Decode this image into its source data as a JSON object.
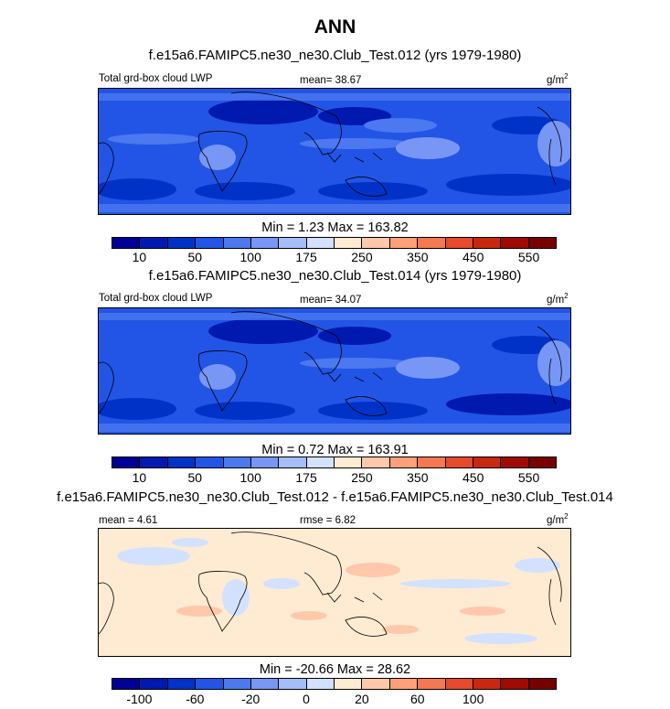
{
  "figure": {
    "title": "ANN"
  },
  "chart_data": [
    {
      "type": "heatmap",
      "title": "f.e15a6.FAMIPC5.ne30_ne30.Club_Test.012 (yrs 1979-1980)",
      "variable": "Total grd-box cloud LWP",
      "mean_label": "mean=  38.67",
      "units_base": "g/m",
      "units_exp": "2",
      "minmax": "Min =   1.23  Max = 163.82",
      "min": 1.23,
      "max": 163.82,
      "mean": 38.67,
      "colorbar": {
        "levels": [
          10,
          25,
          50,
          75,
          100,
          150,
          175,
          200,
          250,
          300,
          350,
          400,
          450,
          500,
          550
        ],
        "tick_labels": [
          "10",
          "50",
          "100",
          "175",
          "250",
          "350",
          "450",
          "550"
        ],
        "colors": [
          "#000096",
          "#0019AF",
          "#0032C8",
          "#2255E6",
          "#4C78F0",
          "#7896F5",
          "#A5BEFA",
          "#D2E1FF",
          "#FFEBD2",
          "#FFC8AA",
          "#FFA078",
          "#F57850",
          "#E64B2D",
          "#C8280F",
          "#A00A00",
          "#780000"
        ]
      }
    },
    {
      "type": "heatmap",
      "title": "f.e15a6.FAMIPC5.ne30_ne30.Club_Test.014 (yrs 1979-1980)",
      "variable": "Total grd-box cloud LWP",
      "mean_label": "mean=  34.07",
      "units_base": "g/m",
      "units_exp": "2",
      "minmax": "Min =   0.72  Max = 163.91",
      "min": 0.72,
      "max": 163.91,
      "mean": 34.07,
      "colorbar": {
        "levels": [
          10,
          25,
          50,
          75,
          100,
          150,
          175,
          200,
          250,
          300,
          350,
          400,
          450,
          500,
          550
        ],
        "tick_labels": [
          "10",
          "50",
          "100",
          "175",
          "250",
          "350",
          "450",
          "550"
        ],
        "colors": [
          "#000096",
          "#0019AF",
          "#0032C8",
          "#2255E6",
          "#4C78F0",
          "#7896F5",
          "#A5BEFA",
          "#D2E1FF",
          "#FFEBD2",
          "#FFC8AA",
          "#FFA078",
          "#F57850",
          "#E64B2D",
          "#C8280F",
          "#A00A00",
          "#780000"
        ]
      }
    },
    {
      "type": "heatmap",
      "title": "f.e15a6.FAMIPC5.ne30_ne30.Club_Test.012 - f.e15a6.FAMIPC5.ne30_ne30.Club_Test.014",
      "left_label": "mean =   4.61",
      "center_label": "rmse =   6.82",
      "units_base": "g/m",
      "units_exp": "2",
      "minmax": "Min = -20.66  Max =  28.62",
      "min": -20.66,
      "max": 28.62,
      "mean": 4.61,
      "rmse": 6.82,
      "colorbar": {
        "tick_labels": [
          "-100",
          "-60",
          "-20",
          "0",
          "20",
          "60",
          "100"
        ],
        "colors": [
          "#000096",
          "#0019AF",
          "#0032C8",
          "#2255E6",
          "#4C78F0",
          "#7896F5",
          "#A5BEFA",
          "#D2E1FF",
          "#FFEBD2",
          "#FFC8AA",
          "#FFA078",
          "#F57850",
          "#E64B2D",
          "#C8280F",
          "#A00A00",
          "#780000"
        ]
      }
    }
  ]
}
